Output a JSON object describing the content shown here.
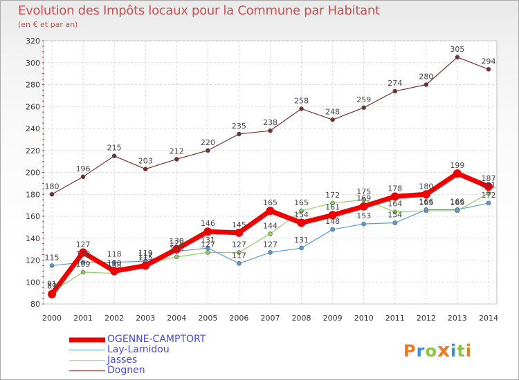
{
  "header": {
    "title": "Evolution des Impôts locaux pour la Commune par Habitant",
    "subtitle": "(en € et par an)"
  },
  "logo": {
    "text": "Proxiti",
    "colors": [
      "#f07820",
      "#3c8ed8",
      "#8cc63f",
      "#f07820",
      "#3c8ed8",
      "#8cc63f",
      "#f07820"
    ]
  },
  "chart_data": {
    "type": "line",
    "x": [
      2000,
      2001,
      2002,
      2003,
      2004,
      2005,
      2006,
      2007,
      2008,
      2009,
      2010,
      2011,
      2012,
      2013,
      2014
    ],
    "ylim": [
      80,
      320
    ],
    "yticks": [
      80,
      100,
      120,
      140,
      160,
      180,
      200,
      220,
      240,
      260,
      280,
      300,
      320
    ],
    "grid": true,
    "legend_placement": "bottom-left",
    "series": [
      {
        "name": "Dognen",
        "color": "#7a2e2e",
        "width": 1.2,
        "values": [
          180,
          196,
          215,
          203,
          212,
          220,
          235,
          238,
          258,
          248,
          259,
          274,
          280,
          305,
          294
        ],
        "labels": [
          "180",
          "196",
          "215",
          "203",
          "212",
          "220",
          "235",
          "238",
          "258",
          "248",
          "259",
          "274",
          "280",
          "305",
          "294"
        ]
      },
      {
        "name": "Jasses",
        "color": "#90d060",
        "width": 1.2,
        "values": [
          91,
          109,
          108,
          117,
          123,
          127,
          127,
          144,
          165,
          172,
          175,
          164,
          165,
          165,
          181
        ],
        "labels": [
          "91",
          "109",
          "108",
          "117",
          "123",
          "127",
          "127",
          "144",
          "165",
          "172",
          "175",
          "164",
          "165",
          "165",
          "181"
        ]
      },
      {
        "name": "Lay-Lamidou",
        "color": "#5b9bd5",
        "width": 1.2,
        "values": [
          115,
          118,
          118,
          119,
          128,
          131,
          117,
          127,
          131,
          148,
          153,
          154,
          166,
          166,
          172
        ],
        "labels": [
          "115",
          "118",
          "118",
          "119",
          "128",
          "131",
          "117",
          "127",
          "131",
          "148",
          "153",
          "154",
          "166",
          "166",
          "172"
        ]
      },
      {
        "name": "OGENNE-CAMPTORT",
        "color": "#ee0000",
        "width": 7,
        "values": [
          89,
          127,
          110,
          115,
          130,
          146,
          145,
          165,
          154,
          161,
          169,
          178,
          180,
          199,
          187
        ],
        "labels": [
          "89",
          "127",
          "110",
          "115",
          "130",
          "146",
          "145",
          "165",
          "154",
          "161",
          "169",
          "178",
          "180",
          "199",
          "187"
        ]
      }
    ],
    "legend": [
      {
        "name": "OGENNE-CAMPTORT",
        "color": "#ee0000",
        "width": 7
      },
      {
        "name": "Lay-Lamidou",
        "color": "#5b9bd5",
        "width": 1.2
      },
      {
        "name": "Jasses",
        "color": "#90d060",
        "width": 1.2
      },
      {
        "name": "Dognen",
        "color": "#7a2e2e",
        "width": 1.2
      }
    ]
  }
}
